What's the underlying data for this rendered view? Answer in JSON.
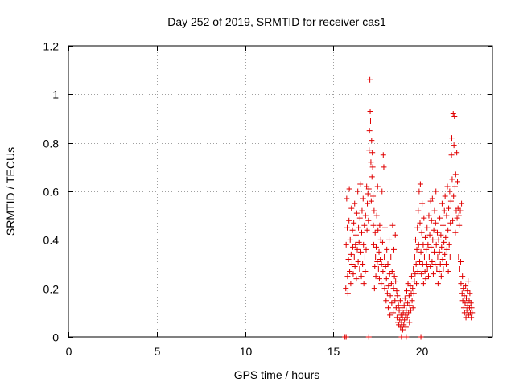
{
  "chart_data": {
    "type": "scatter",
    "title": "Day 252 of 2019, SRMTID for receiver cas1",
    "xlabel": "GPS time / hours",
    "ylabel": "SRMTID / TECUs",
    "xlim": [
      0,
      24
    ],
    "ylim": [
      0,
      1.2
    ],
    "x_ticks": [
      0,
      5,
      10,
      15,
      20
    ],
    "y_ticks": [
      0,
      0.2,
      0.4,
      0.6,
      0.8,
      1,
      1.2
    ],
    "x_tick_labels": [
      "0",
      "5",
      "10",
      "15",
      "20"
    ],
    "y_tick_labels": [
      "0",
      "0.2",
      "0.4",
      "0.6",
      "0.8",
      "1",
      "1.2"
    ],
    "grid": true,
    "marker": "plus",
    "color": "#e00000",
    "series": [
      {
        "name": "SRMTID",
        "points": [
          [
            15.65,
            0.0
          ],
          [
            15.72,
            0.0
          ],
          [
            15.7,
            0.2
          ],
          [
            15.72,
            0.38
          ],
          [
            15.75,
            0.57
          ],
          [
            15.78,
            0.45
          ],
          [
            15.8,
            0.25
          ],
          [
            15.82,
            0.18
          ],
          [
            15.85,
            0.32
          ],
          [
            15.88,
            0.48
          ],
          [
            15.9,
            0.61
          ],
          [
            15.92,
            0.27
          ],
          [
            15.95,
            0.4
          ],
          [
            15.98,
            0.22
          ],
          [
            16.0,
            0.34
          ],
          [
            16.02,
            0.53
          ],
          [
            16.05,
            0.3
          ],
          [
            16.08,
            0.44
          ],
          [
            16.1,
            0.37
          ],
          [
            16.12,
            0.26
          ],
          [
            16.15,
            0.47
          ],
          [
            16.18,
            0.33
          ],
          [
            16.2,
            0.55
          ],
          [
            16.22,
            0.29
          ],
          [
            16.25,
            0.38
          ],
          [
            16.28,
            0.42
          ],
          [
            16.3,
            0.24
          ],
          [
            16.32,
            0.51
          ],
          [
            16.35,
            0.36
          ],
          [
            16.38,
            0.6
          ],
          [
            16.4,
            0.31
          ],
          [
            16.42,
            0.45
          ],
          [
            16.45,
            0.39
          ],
          [
            16.48,
            0.28
          ],
          [
            16.5,
            0.49
          ],
          [
            16.52,
            0.63
          ],
          [
            16.55,
            0.35
          ],
          [
            16.58,
            0.25
          ],
          [
            16.6,
            0.43
          ],
          [
            16.62,
            0.52
          ],
          [
            16.65,
            0.3
          ],
          [
            16.68,
            0.57
          ],
          [
            16.7,
            0.38
          ],
          [
            16.72,
            0.22
          ],
          [
            16.75,
            0.46
          ],
          [
            16.78,
            0.33
          ],
          [
            16.8,
            0.27
          ],
          [
            16.82,
            0.5
          ],
          [
            16.85,
            0.36
          ],
          [
            16.88,
            0.62
          ],
          [
            16.9,
            0.44
          ],
          [
            16.92,
            0.55
          ],
          [
            16.95,
            0.59
          ],
          [
            16.98,
            0.48
          ],
          [
            17.0,
            0.61
          ],
          [
            17.02,
            0.77
          ],
          [
            17.04,
            0.85
          ],
          [
            17.06,
            1.06
          ],
          [
            17.08,
            0.93
          ],
          [
            17.1,
            0.89
          ],
          [
            17.12,
            0.72
          ],
          [
            17.14,
            0.56
          ],
          [
            17.16,
            0.81
          ],
          [
            17.18,
            0.66
          ],
          [
            17.2,
            0.76
          ],
          [
            17.22,
            0.7
          ],
          [
            17.24,
            0.58
          ],
          [
            17.26,
            0.46
          ],
          [
            17.28,
            0.38
          ],
          [
            17.3,
            0.52
          ],
          [
            17.32,
            0.2
          ],
          [
            17.34,
            0.29
          ],
          [
            17.36,
            0.43
          ],
          [
            17.38,
            0.33
          ],
          [
            17.4,
            0.25
          ],
          [
            17.42,
            0.37
          ],
          [
            17.45,
            0.5
          ],
          [
            17.48,
            0.31
          ],
          [
            17.5,
            0.62
          ],
          [
            17.52,
            0.44
          ],
          [
            17.55,
            0.28
          ],
          [
            17.58,
            0.35
          ],
          [
            17.6,
            0.24
          ],
          [
            17.62,
            0.46
          ],
          [
            17.65,
            0.32
          ],
          [
            17.68,
            0.4
          ],
          [
            17.7,
            0.22
          ],
          [
            17.72,
            0.3
          ],
          [
            17.75,
            0.6
          ],
          [
            17.78,
            0.39
          ],
          [
            17.8,
            0.27
          ],
          [
            17.82,
            0.75
          ],
          [
            17.85,
            0.7
          ],
          [
            17.88,
            0.33
          ],
          [
            17.9,
            0.2
          ],
          [
            17.92,
            0.45
          ],
          [
            17.95,
            0.29
          ],
          [
            17.98,
            0.15
          ],
          [
            18.0,
            0.24
          ],
          [
            18.02,
            0.36
          ],
          [
            18.05,
            0.18
          ],
          [
            18.08,
            0.3
          ],
          [
            18.1,
            0.12
          ],
          [
            18.12,
            0.21
          ],
          [
            18.15,
            0.4
          ],
          [
            18.18,
            0.26
          ],
          [
            18.2,
            0.09
          ],
          [
            18.22,
            0.17
          ],
          [
            18.25,
            0.33
          ],
          [
            18.28,
            0.22
          ],
          [
            18.3,
            0.14
          ],
          [
            18.32,
            0.27
          ],
          [
            18.35,
            0.46
          ],
          [
            18.38,
            0.1
          ],
          [
            18.4,
            0.2
          ],
          [
            18.42,
            0.36
          ],
          [
            18.45,
            0.25
          ],
          [
            18.48,
            0.15
          ],
          [
            18.5,
            0.42
          ],
          [
            18.52,
            0.23
          ],
          [
            18.55,
            0.12
          ],
          [
            18.58,
            0.19
          ],
          [
            18.6,
            0.08
          ],
          [
            18.62,
            0.17
          ],
          [
            18.65,
            0.06
          ],
          [
            18.68,
            0.13
          ],
          [
            18.7,
            0.05
          ],
          [
            18.72,
            0.11
          ],
          [
            18.75,
            0.07
          ],
          [
            18.78,
            0.15
          ],
          [
            18.8,
            0.04
          ],
          [
            18.82,
            0.09
          ],
          [
            18.85,
            0.06
          ],
          [
            18.88,
            0.12
          ],
          [
            18.9,
            0.08
          ],
          [
            18.92,
            0.03
          ],
          [
            18.95,
            0.1
          ],
          [
            18.98,
            0.05
          ],
          [
            19.0,
            0.13
          ],
          [
            19.02,
            0.07
          ],
          [
            19.05,
            0.16
          ],
          [
            19.08,
            0.09
          ],
          [
            19.1,
            0.04
          ],
          [
            19.12,
            0.11
          ],
          [
            19.15,
            0.19
          ],
          [
            19.18,
            0.08
          ],
          [
            19.2,
            0.14
          ],
          [
            19.22,
            0.22
          ],
          [
            19.25,
            0.1
          ],
          [
            19.28,
            0.17
          ],
          [
            19.3,
            0.06
          ],
          [
            19.32,
            0.13
          ],
          [
            19.35,
            0.21
          ],
          [
            19.38,
            0.11
          ],
          [
            19.4,
            0.18
          ],
          [
            19.42,
            0.25
          ],
          [
            19.45,
            0.15
          ],
          [
            19.48,
            0.2
          ],
          [
            19.5,
            0.12
          ],
          [
            19.52,
            0.28
          ],
          [
            19.55,
            0.18
          ],
          [
            19.58,
            0.23
          ],
          [
            19.6,
            0.33
          ],
          [
            19.62,
            0.26
          ],
          [
            19.65,
            0.4
          ],
          [
            19.68,
            0.3
          ],
          [
            19.7,
            0.22
          ],
          [
            19.72,
            0.36
          ],
          [
            19.75,
            0.45
          ],
          [
            19.78,
            0.27
          ],
          [
            19.8,
            0.52
          ],
          [
            19.82,
            0.38
          ],
          [
            19.85,
            0.6
          ],
          [
            19.88,
            0.31
          ],
          [
            19.9,
            0.47
          ],
          [
            19.92,
            0.63
          ],
          [
            19.95,
            0.35
          ],
          [
            19.98,
            0.26
          ],
          [
            20.0,
            0.43
          ],
          [
            20.02,
            0.55
          ],
          [
            20.05,
            0.3
          ],
          [
            20.08,
            0.38
          ],
          [
            20.1,
            0.22
          ],
          [
            20.12,
            0.49
          ],
          [
            20.15,
            0.33
          ],
          [
            20.18,
            0.27
          ],
          [
            20.2,
            0.41
          ],
          [
            20.22,
            0.24
          ],
          [
            20.25,
            0.36
          ],
          [
            20.28,
            0.3
          ],
          [
            20.3,
            0.45
          ],
          [
            20.32,
            0.28
          ],
          [
            20.35,
            0.38
          ],
          [
            20.38,
            0.25
          ],
          [
            20.4,
            0.5
          ],
          [
            20.42,
            0.33
          ],
          [
            20.45,
            0.42
          ],
          [
            20.48,
            0.29
          ],
          [
            20.5,
            0.56
          ],
          [
            20.52,
            0.37
          ],
          [
            20.55,
            0.48
          ],
          [
            20.58,
            0.31
          ],
          [
            20.6,
            0.57
          ],
          [
            20.62,
            0.4
          ],
          [
            20.65,
            0.26
          ],
          [
            20.68,
            0.44
          ],
          [
            20.7,
            0.35
          ],
          [
            20.72,
            0.52
          ],
          [
            20.75,
            0.3
          ],
          [
            20.78,
            0.47
          ],
          [
            20.8,
            0.6
          ],
          [
            20.82,
            0.38
          ],
          [
            20.85,
            0.28
          ],
          [
            20.88,
            0.43
          ],
          [
            20.9,
            0.33
          ],
          [
            20.92,
            0.22
          ],
          [
            20.95,
            0.4
          ],
          [
            20.98,
            0.27
          ],
          [
            21.0,
            0.35
          ],
          [
            21.02,
            0.49
          ],
          [
            21.05,
            0.3
          ],
          [
            21.08,
            0.42
          ],
          [
            21.1,
            0.25
          ],
          [
            21.12,
            0.37
          ],
          [
            21.15,
            0.55
          ],
          [
            21.18,
            0.32
          ],
          [
            21.2,
            0.46
          ],
          [
            21.22,
            0.28
          ],
          [
            21.25,
            0.39
          ],
          [
            21.28,
            0.52
          ],
          [
            21.3,
            0.34
          ],
          [
            21.32,
            0.58
          ],
          [
            21.35,
            0.41
          ],
          [
            21.38,
            0.3
          ],
          [
            21.4,
            0.5
          ],
          [
            21.42,
            0.36
          ],
          [
            21.45,
            0.62
          ],
          [
            21.48,
            0.44
          ],
          [
            21.5,
            0.27
          ],
          [
            21.52,
            0.53
          ],
          [
            21.55,
            0.38
          ],
          [
            21.58,
            0.6
          ],
          [
            21.6,
            0.33
          ],
          [
            21.62,
            0.47
          ],
          [
            21.65,
            0.56
          ],
          [
            21.68,
            0.75
          ],
          [
            21.7,
            0.82
          ],
          [
            21.72,
            0.65
          ],
          [
            21.75,
            0.48
          ],
          [
            21.78,
            0.92
          ],
          [
            21.8,
            0.58
          ],
          [
            21.82,
            0.79
          ],
          [
            21.85,
            0.91
          ],
          [
            21.88,
            0.62
          ],
          [
            21.9,
            0.43
          ],
          [
            21.92,
            0.67
          ],
          [
            21.95,
            0.52
          ],
          [
            21.98,
            0.76
          ],
          [
            22.0,
            0.49
          ],
          [
            22.02,
            0.64
          ],
          [
            22.05,
            0.53
          ],
          [
            22.08,
            0.33
          ],
          [
            22.1,
            0.5
          ],
          [
            22.12,
            0.46
          ],
          [
            22.15,
            0.28
          ],
          [
            22.18,
            0.52
          ],
          [
            22.2,
            0.31
          ],
          [
            22.22,
            0.22
          ],
          [
            22.25,
            0.55
          ],
          [
            22.28,
            0.18
          ],
          [
            22.3,
            0.25
          ],
          [
            22.32,
            0.15
          ],
          [
            22.35,
            0.2
          ],
          [
            22.38,
            0.12
          ],
          [
            22.4,
            0.17
          ],
          [
            22.42,
            0.1
          ],
          [
            22.45,
            0.14
          ],
          [
            22.48,
            0.21
          ],
          [
            22.5,
            0.08
          ],
          [
            22.52,
            0.16
          ],
          [
            22.55,
            0.11
          ],
          [
            22.58,
            0.19
          ],
          [
            22.6,
            0.13
          ],
          [
            22.62,
            0.23
          ],
          [
            22.65,
            0.09
          ],
          [
            22.68,
            0.15
          ],
          [
            22.7,
            0.12
          ],
          [
            22.72,
            0.18
          ],
          [
            22.75,
            0.1
          ],
          [
            22.78,
            0.14
          ],
          [
            22.8,
            0.08
          ],
          [
            22.82,
            0.12
          ],
          [
            22.85,
            0.1
          ],
          [
            18.85,
            0.0
          ],
          [
            19.12,
            0.0
          ],
          [
            19.95,
            0.0
          ],
          [
            17.0,
            0.0
          ]
        ]
      }
    ]
  }
}
